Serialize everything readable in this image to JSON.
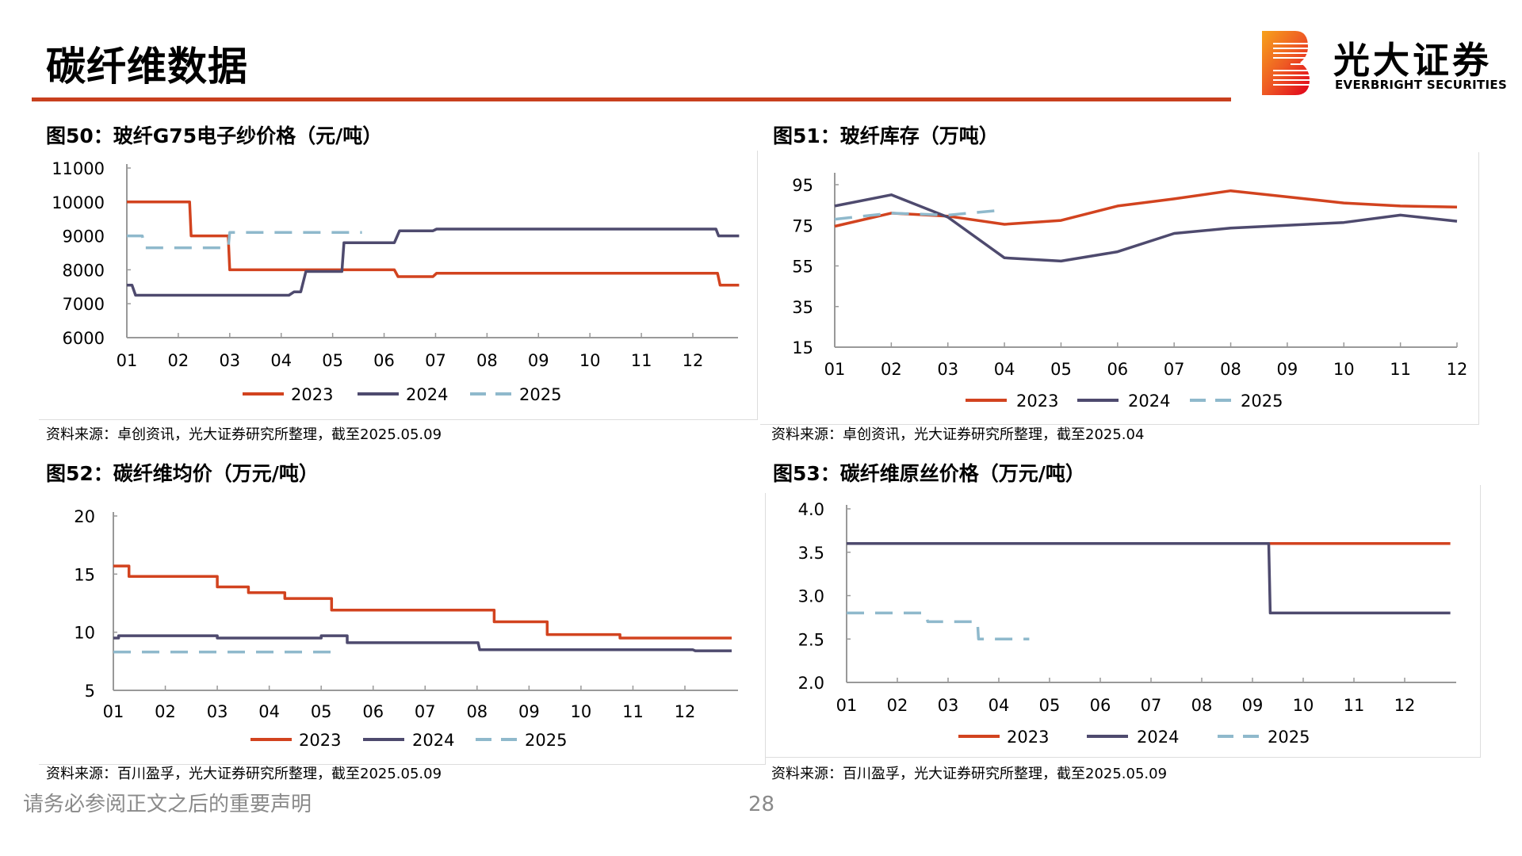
{
  "header": {
    "title": "碳纤维数据",
    "logo_cn": "光大证券",
    "logo_en": "EVERBRIGHT SECURITIES",
    "accent_color": "#C8401E"
  },
  "footer": {
    "disclaimer": "请务必参阅正文之后的重要声明",
    "page_number": "28"
  },
  "series_colors": {
    "2023": "#D2431F",
    "2024": "#4E4A6E",
    "2025": "#8FB9CC"
  },
  "chart_data": [
    {
      "id": "fig50",
      "type": "line",
      "title": "图50：玻纤G75电子纱价格（元/吨）",
      "source": "资料来源：卓创资讯，光大证券研究所整理，截至2025.05.09",
      "categories": [
        "01",
        "02",
        "03",
        "04",
        "05",
        "06",
        "07",
        "08",
        "09",
        "10",
        "11",
        "12"
      ],
      "ylim": [
        6000,
        11000
      ],
      "yticks": [
        "11000",
        "10000",
        "9000",
        "8000",
        "7000",
        "6000"
      ],
      "ytick_values": [
        11000,
        10000,
        9000,
        8000,
        7000,
        6000
      ],
      "grid": false,
      "legend": "bottom",
      "step": true,
      "series": [
        {
          "name": "2023",
          "dashed": false,
          "points": [
            [
              1,
              10000
            ],
            [
              2.22,
              10000
            ],
            [
              2.25,
              9000
            ],
            [
              2.97,
              9000
            ],
            [
              3.0,
              8000
            ],
            [
              6.2,
              8000
            ],
            [
              6.27,
              7800
            ],
            [
              6.95,
              7800
            ],
            [
              7.02,
              7900
            ],
            [
              12.48,
              7900
            ],
            [
              12.53,
              7550
            ],
            [
              12.9,
              7550
            ]
          ]
        },
        {
          "name": "2024",
          "dashed": false,
          "points": [
            [
              1,
              7550
            ],
            [
              1.1,
              7550
            ],
            [
              1.17,
              7250
            ],
            [
              4.15,
              7250
            ],
            [
              4.25,
              7350
            ],
            [
              4.38,
              7350
            ],
            [
              4.48,
              7950
            ],
            [
              5.18,
              7950
            ],
            [
              5.22,
              8800
            ],
            [
              6.2,
              8800
            ],
            [
              6.3,
              9150
            ],
            [
              6.95,
              9150
            ],
            [
              7.02,
              9200
            ],
            [
              12.45,
              9200
            ],
            [
              12.5,
              9000
            ],
            [
              12.9,
              9000
            ]
          ]
        },
        {
          "name": "2025",
          "dashed": true,
          "points": [
            [
              1,
              9000
            ],
            [
              1.3,
              9000
            ],
            [
              1.35,
              8650
            ],
            [
              2.97,
              8650
            ],
            [
              3.0,
              9100
            ],
            [
              5.57,
              9100
            ]
          ]
        }
      ]
    },
    {
      "id": "fig51",
      "type": "line",
      "title": "图51：玻纤库存（万吨）",
      "source": "资料来源：卓创资讯，光大证券研究所整理，截至2025.04",
      "categories": [
        "01",
        "02",
        "03",
        "04",
        "05",
        "06",
        "07",
        "08",
        "09",
        "10",
        "11",
        "12"
      ],
      "ylim": [
        15,
        95
      ],
      "yticks": [
        "95",
        "75",
        "55",
        "35",
        "15"
      ],
      "ytick_values": [
        95,
        75,
        55,
        35,
        15
      ],
      "grid": false,
      "legend": "bottom",
      "step": false,
      "series": [
        {
          "name": "2023",
          "dashed": false,
          "points": [
            [
              1,
              74.5
            ],
            [
              2,
              81
            ],
            [
              3,
              79.5
            ],
            [
              4,
              75.5
            ],
            [
              5,
              77.4
            ],
            [
              6,
              84.5
            ],
            [
              7,
              88
            ],
            [
              8,
              92
            ],
            [
              9,
              89
            ],
            [
              10,
              86
            ],
            [
              11,
              84.5
            ],
            [
              12,
              84
            ]
          ]
        },
        {
          "name": "2024",
          "dashed": false,
          "points": [
            [
              1,
              84.5
            ],
            [
              2,
              90
            ],
            [
              3,
              79
            ],
            [
              4,
              59
            ],
            [
              5,
              57.4
            ],
            [
              6,
              62
            ],
            [
              7,
              71
            ],
            [
              8,
              73.6
            ],
            [
              9,
              75
            ],
            [
              10,
              76.4
            ],
            [
              11,
              80
            ],
            [
              12,
              77
            ]
          ]
        },
        {
          "name": "2025",
          "dashed": true,
          "points": [
            [
              1,
              78
            ],
            [
              2,
              81
            ],
            [
              3,
              80
            ],
            [
              4,
              82.6
            ]
          ]
        }
      ]
    },
    {
      "id": "fig52",
      "type": "line",
      "title": "图52：碳纤维均价（万元/吨）",
      "source": "资料来源：百川盈孚，光大证券研究所整理，截至2025.05.09",
      "categories": [
        "01",
        "02",
        "03",
        "04",
        "05",
        "06",
        "07",
        "08",
        "09",
        "10",
        "11",
        "12"
      ],
      "ylim": [
        5,
        20
      ],
      "yticks": [
        "20",
        "15",
        "10",
        "5"
      ],
      "ytick_values": [
        20,
        15,
        10,
        5
      ],
      "grid": false,
      "legend": "bottom",
      "step": true,
      "series": [
        {
          "name": "2023",
          "dashed": false,
          "points": [
            [
              1,
              15.7
            ],
            [
              1.3,
              15.7
            ],
            [
              1.3,
              14.8
            ],
            [
              3.0,
              14.8
            ],
            [
              3.0,
              13.9
            ],
            [
              3.6,
              13.9
            ],
            [
              3.6,
              13.4
            ],
            [
              4.3,
              13.4
            ],
            [
              4.3,
              12.9
            ],
            [
              5.2,
              12.9
            ],
            [
              5.2,
              11.9
            ],
            [
              8.33,
              11.9
            ],
            [
              8.33,
              10.9
            ],
            [
              9.35,
              10.9
            ],
            [
              9.35,
              9.8
            ],
            [
              10.75,
              9.8
            ],
            [
              10.75,
              9.5
            ],
            [
              12.9,
              9.5
            ]
          ]
        },
        {
          "name": "2024",
          "dashed": false,
          "points": [
            [
              1,
              9.5
            ],
            [
              1.1,
              9.5
            ],
            [
              1.1,
              9.7
            ],
            [
              3.0,
              9.7
            ],
            [
              3.0,
              9.5
            ],
            [
              5.0,
              9.5
            ],
            [
              5.0,
              9.7
            ],
            [
              5.5,
              9.7
            ],
            [
              5.5,
              9.1
            ],
            [
              8.02,
              9.1
            ],
            [
              8.05,
              8.5
            ],
            [
              12.15,
              8.5
            ],
            [
              12.2,
              8.4
            ],
            [
              12.9,
              8.4
            ]
          ]
        },
        {
          "name": "2025",
          "dashed": true,
          "points": [
            [
              1,
              8.3
            ],
            [
              5.3,
              8.3
            ]
          ]
        }
      ]
    },
    {
      "id": "fig53",
      "type": "line",
      "title": "图53：碳纤维原丝价格（万元/吨）",
      "source": "资料来源：百川盈孚，光大证券研究所整理，截至2025.05.09",
      "categories": [
        "01",
        "02",
        "03",
        "04",
        "05",
        "06",
        "07",
        "08",
        "09",
        "10",
        "11",
        "12"
      ],
      "ylim": [
        2.0,
        4.0
      ],
      "yticks": [
        "4.0",
        "3.5",
        "3.0",
        "2.5",
        "2.0"
      ],
      "ytick_values": [
        4.0,
        3.5,
        3.0,
        2.5,
        2.0
      ],
      "grid": false,
      "legend": "bottom",
      "step": true,
      "series": [
        {
          "name": "2023",
          "dashed": false,
          "points": [
            [
              1,
              3.6
            ],
            [
              12.9,
              3.6
            ]
          ]
        },
        {
          "name": "2024",
          "dashed": false,
          "points": [
            [
              1,
              3.6
            ],
            [
              9.32,
              3.6
            ],
            [
              9.35,
              2.8
            ],
            [
              12.9,
              2.8
            ]
          ]
        },
        {
          "name": "2025",
          "dashed": true,
          "points": [
            [
              1,
              2.8
            ],
            [
              2.55,
              2.8
            ],
            [
              2.6,
              2.7
            ],
            [
              3.58,
              2.7
            ],
            [
              3.6,
              2.5
            ],
            [
              4.6,
              2.5
            ]
          ]
        }
      ]
    }
  ]
}
